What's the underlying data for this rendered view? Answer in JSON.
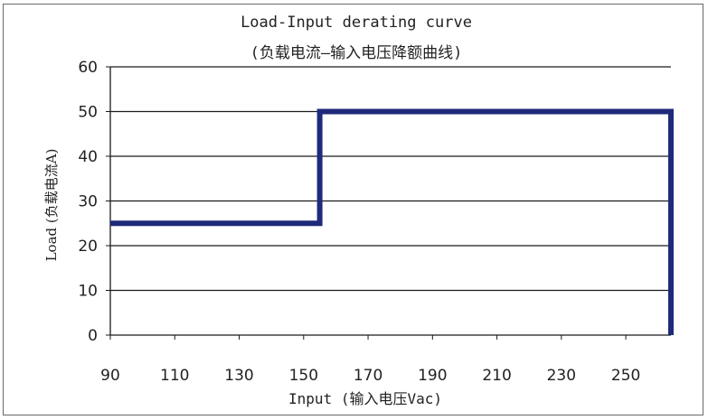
{
  "chart_data": {
    "type": "line",
    "title": "Load-Input derating curve",
    "subtitle": "(负载电流—输入电压降额曲线)",
    "xlabel": "Input (输入电压Vac)",
    "ylabel": "Load (负载电流A)",
    "x_ticks": [
      90,
      110,
      130,
      150,
      170,
      190,
      210,
      230,
      250
    ],
    "y_ticks": [
      0,
      10,
      20,
      30,
      40,
      50,
      60
    ],
    "xlim": [
      90,
      264
    ],
    "ylim": [
      0,
      60
    ],
    "grid": true,
    "series": [
      {
        "color": "#1f2a7a",
        "x": [
          90,
          155,
          155,
          264,
          264
        ],
        "y": [
          25,
          25,
          50,
          50,
          0
        ]
      }
    ]
  }
}
